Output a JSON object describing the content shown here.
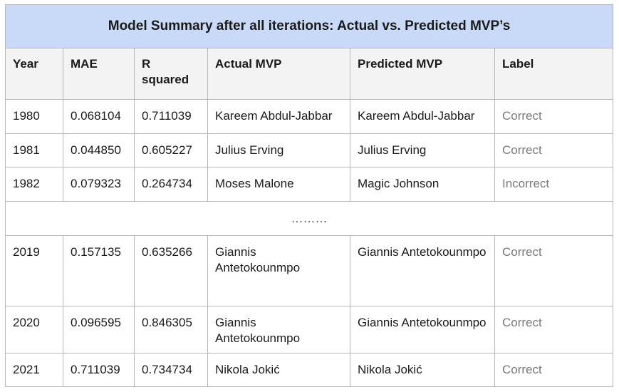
{
  "title": "Model Summary after all iterations: Actual vs. Predicted MVP’s",
  "columns": [
    "Year",
    "MAE",
    "R squared",
    "Actual MVP",
    "Predicted MVP",
    "Label"
  ],
  "rows": [
    {
      "year": "1980",
      "mae": "0.068104",
      "r2": "0.711039",
      "actual": "Kareem Abdul-Jabbar",
      "predicted": "Kareem Abdul-Jabbar",
      "label": "Correct"
    },
    {
      "year": "1981",
      "mae": "0.044850",
      "r2": "0.605227",
      "actual": "Julius Erving",
      "predicted": "Julius Erving",
      "label": "Correct"
    },
    {
      "year": "1982",
      "mae": "0.079323",
      "r2": "0.264734",
      "actual": "Moses Malone",
      "predicted": "Magic Johnson",
      "label": "Incorrect"
    },
    {
      "year": "2019",
      "mae": "0.157135",
      "r2": "0.635266",
      "actual": "Giannis Antetokounmpo",
      "predicted": "Giannis Antetokounmpo",
      "label": "Correct"
    },
    {
      "year": "2020",
      "mae": "0.096595",
      "r2": "0.846305",
      "actual": "Giannis Antetokounmpo",
      "predicted": "Giannis Antetokounmpo",
      "label": "Correct"
    },
    {
      "year": "2021",
      "mae": "0.711039",
      "r2": "0.734734",
      "actual": "Nikola Jokić",
      "predicted": "Nikola Jokić",
      "label": "Correct"
    }
  ],
  "ellipsis": "………"
}
